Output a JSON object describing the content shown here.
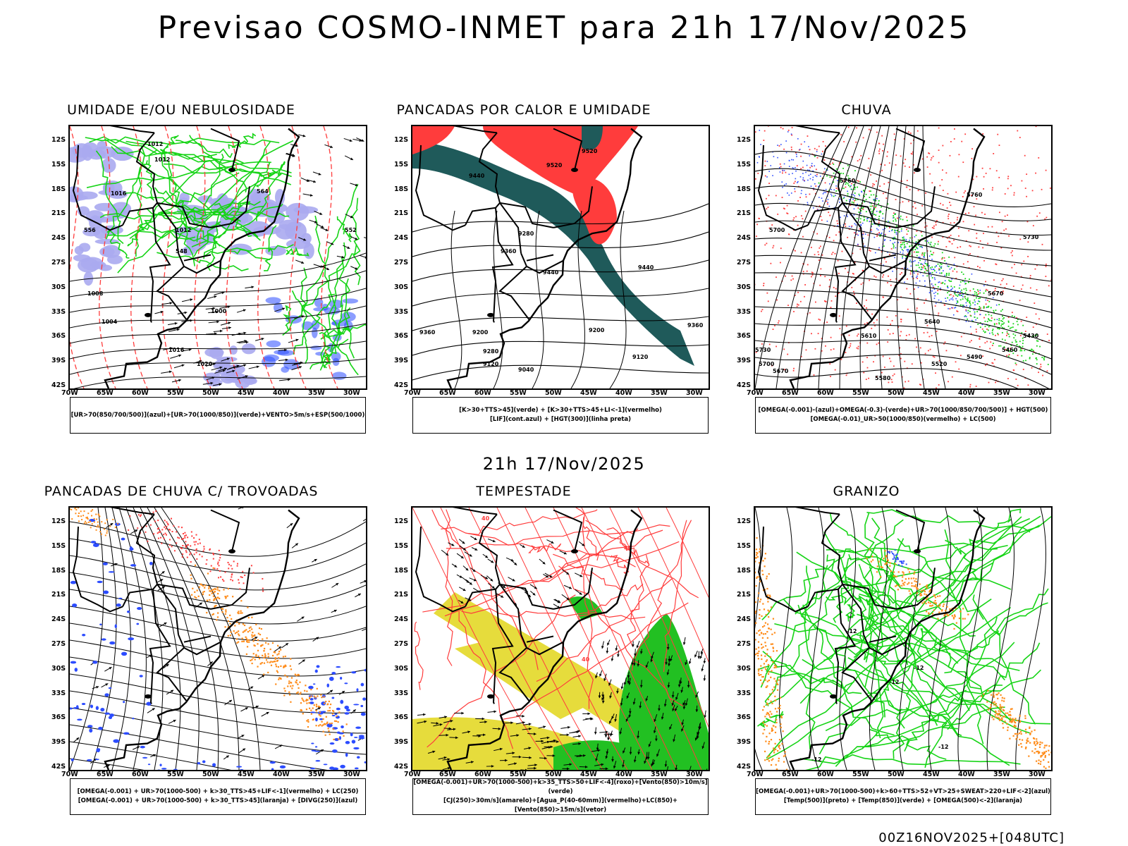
{
  "page": {
    "main_title": "Previsao COSMO-INMET  para 21h 17/Nov/2025",
    "mid_title": "21h 17/Nov/2025",
    "footer": "00Z16NOV2025+[048UTC]"
  },
  "axes": {
    "lat_labels": [
      "12S",
      "15S",
      "18S",
      "21S",
      "24S",
      "27S",
      "30S",
      "33S",
      "36S",
      "39S",
      "42S"
    ],
    "lon_labels": [
      "70W",
      "65W",
      "60W",
      "55W",
      "50W",
      "45W",
      "40W",
      "35W",
      "30W"
    ]
  },
  "colors": {
    "green": "#16d416",
    "red": "#ff3c3c",
    "blue": "#2c4cff",
    "lavender": "#aaaaf0",
    "orange": "#ff8c1a",
    "teal": "#1f5a5a",
    "yellow": "#e6dc3c",
    "black": "#000000"
  },
  "panels": [
    {
      "id": "umidade",
      "title": "UMIDADE E/OU NEBULOSIDADE",
      "legend": [
        "[UR>70(850/700/500)](azul)+[UR>70(1000/850)](verde)+VENTO>5m/s+ESP(500/1000)"
      ],
      "contour_labels": [
        "1012",
        "1012",
        "1016",
        "1012",
        "1008",
        "1004",
        "1000",
        "1016",
        "1020",
        "552",
        "556",
        "548",
        "564"
      ]
    },
    {
      "id": "pancadas-calor",
      "title": "PANCADAS POR CALOR E UMIDADE",
      "legend": [
        "[K>30+TTS>45](verde) + [K>30+TTS>45+LI<-1](vermelho)",
        "[LIF](cont.azul) + [HGT(300)](linha preta)"
      ],
      "contour_labels": [
        "9520",
        "9520",
        "9440",
        "9280",
        "9360",
        "9440",
        "9200",
        "9360",
        "9200",
        "9280",
        "9120",
        "9040",
        "9440",
        "9360",
        "9120"
      ]
    },
    {
      "id": "chuva",
      "title": "CHUVA",
      "legend": [
        "[OMEGA(-0.001)-(azul)+OMEGA(-0.3)-(verde)+UR>70(1000/850/700/500)] + HGT(500)",
        "[OMEGA(-0.01)_UR>50(1000/850)(vermelho) + LC(500)"
      ],
      "contour_labels": [
        "5760",
        "5760",
        "5730",
        "5670",
        "5640",
        "5610",
        "5580",
        "5520",
        "5490",
        "5460",
        "5430",
        "5700",
        "5730",
        "5700",
        "5670"
      ]
    },
    {
      "id": "trovoadas",
      "title": "PANCADAS DE CHUVA C/ TROVOADAS",
      "legend": [
        "[OMEGA(-0.001) + UR>70(1000-500) + k>30_TTS>45+LIF<-1](vermelho) + LC(250)",
        "[OMEGA(-0.001) + UR>70(1000-500) + k>30_TTS>45](laranja) + [DIVG(250)](azul)"
      ],
      "contour_labels": []
    },
    {
      "id": "tempestade",
      "title": "TEMPESTADE",
      "legend": [
        "[OMEGA(-0.001)+UR>70(1000-500)+k>35_TTS>50+LIF<-4](roxo)+[Vento(850)>10m/s](verde)",
        "[CJ(250)>30m/s](amarelo)+[Agua_P(40-60mm)](vermelho)+LC(850)+[Vento(850)>15m/s](vetor)"
      ],
      "contour_labels": [
        "40",
        "40",
        "50",
        "40"
      ]
    },
    {
      "id": "granizo",
      "title": "GRANIZO",
      "legend": [
        "[OMEGA(-0.001)+UR>70(1000-500)+k>60+TTS>52+VT>25+SWEAT>220+LIF<-2](azul)",
        "[Temp(500)](preto) + [Temp(850)](verde) + [OMEGA(500)<-2](laranja)"
      ],
      "contour_labels": [
        "-12",
        "-12",
        "-12",
        "-12",
        "-12"
      ]
    }
  ]
}
